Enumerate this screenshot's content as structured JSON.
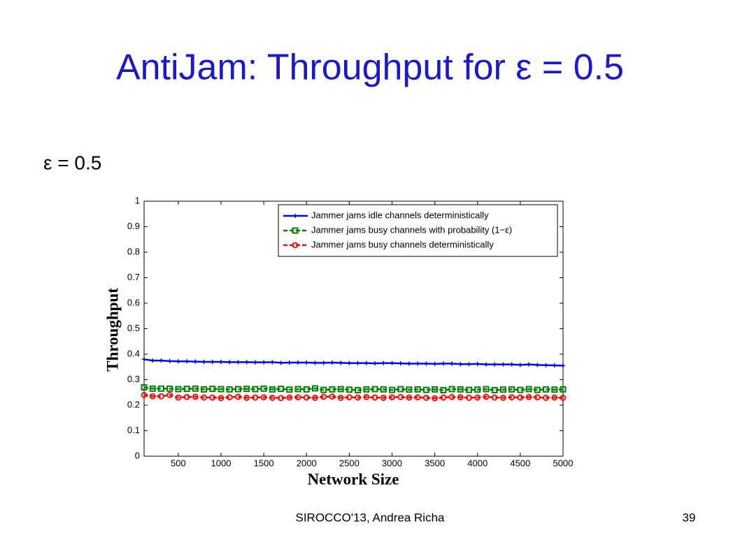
{
  "slide": {
    "title": "AntiJam: Throughput for ε = 0.5",
    "subtitle": "ε = 0.5",
    "footer": "SIROCCO'13, Andrea Richa",
    "page_number": "39"
  },
  "chart_data": {
    "type": "line",
    "xlabel": "Network Size",
    "ylabel": "Throughput",
    "x": [
      100,
      200,
      300,
      400,
      500,
      600,
      700,
      800,
      900,
      1000,
      1100,
      1200,
      1300,
      1400,
      1500,
      1600,
      1700,
      1800,
      1900,
      2000,
      2100,
      2200,
      2300,
      2400,
      2500,
      2600,
      2700,
      2800,
      2900,
      3000,
      3100,
      3200,
      3300,
      3400,
      3500,
      3600,
      3700,
      3800,
      3900,
      4000,
      4100,
      4200,
      4300,
      4400,
      4500,
      4600,
      4700,
      4800,
      4900,
      5000
    ],
    "series": [
      {
        "name": "Jammer jams idle channels deterministically",
        "color": "#0000ff",
        "marker": "plus",
        "values": [
          0.38,
          0.375,
          0.375,
          0.373,
          0.372,
          0.372,
          0.371,
          0.37,
          0.37,
          0.37,
          0.369,
          0.369,
          0.369,
          0.368,
          0.368,
          0.369,
          0.366,
          0.367,
          0.367,
          0.367,
          0.366,
          0.366,
          0.367,
          0.366,
          0.365,
          0.365,
          0.365,
          0.364,
          0.365,
          0.365,
          0.364,
          0.363,
          0.363,
          0.363,
          0.362,
          0.363,
          0.363,
          0.361,
          0.361,
          0.362,
          0.36,
          0.36,
          0.36,
          0.36,
          0.358,
          0.36,
          0.358,
          0.357,
          0.356,
          0.355
        ]
      },
      {
        "name": "Jammer jams busy channels with probability (1−ε)",
        "color": "#008000",
        "marker": "square",
        "dashed": true,
        "values": [
          0.27,
          0.265,
          0.265,
          0.265,
          0.263,
          0.264,
          0.265,
          0.262,
          0.264,
          0.263,
          0.262,
          0.263,
          0.264,
          0.263,
          0.265,
          0.262,
          0.264,
          0.261,
          0.263,
          0.262,
          0.266,
          0.26,
          0.262,
          0.263,
          0.261,
          0.259,
          0.262,
          0.263,
          0.262,
          0.26,
          0.263,
          0.261,
          0.262,
          0.26,
          0.262,
          0.259,
          0.263,
          0.262,
          0.26,
          0.261,
          0.263,
          0.259,
          0.261,
          0.262,
          0.26,
          0.263,
          0.26,
          0.262,
          0.261,
          0.262
        ]
      },
      {
        "name": "Jammer jams busy channels deterministically",
        "color": "#ff0000",
        "marker": "circle",
        "dashed": true,
        "values": [
          0.24,
          0.235,
          0.235,
          0.24,
          0.23,
          0.232,
          0.233,
          0.23,
          0.23,
          0.228,
          0.231,
          0.233,
          0.229,
          0.23,
          0.231,
          0.229,
          0.228,
          0.23,
          0.231,
          0.23,
          0.229,
          0.233,
          0.234,
          0.229,
          0.231,
          0.23,
          0.232,
          0.23,
          0.229,
          0.231,
          0.232,
          0.23,
          0.231,
          0.229,
          0.227,
          0.23,
          0.232,
          0.231,
          0.229,
          0.23,
          0.233,
          0.23,
          0.229,
          0.231,
          0.23,
          0.232,
          0.231,
          0.229,
          0.23,
          0.229
        ]
      }
    ],
    "xlim": [
      100,
      5000
    ],
    "xticks": [
      500,
      1000,
      1500,
      2000,
      2500,
      3000,
      3500,
      4000,
      4500,
      5000
    ],
    "ylim": [
      0,
      1
    ],
    "yticks": [
      0,
      0.1,
      0.2,
      0.3,
      0.4,
      0.5,
      0.6,
      0.7,
      0.8,
      0.9,
      1
    ],
    "legend": "upper right"
  }
}
